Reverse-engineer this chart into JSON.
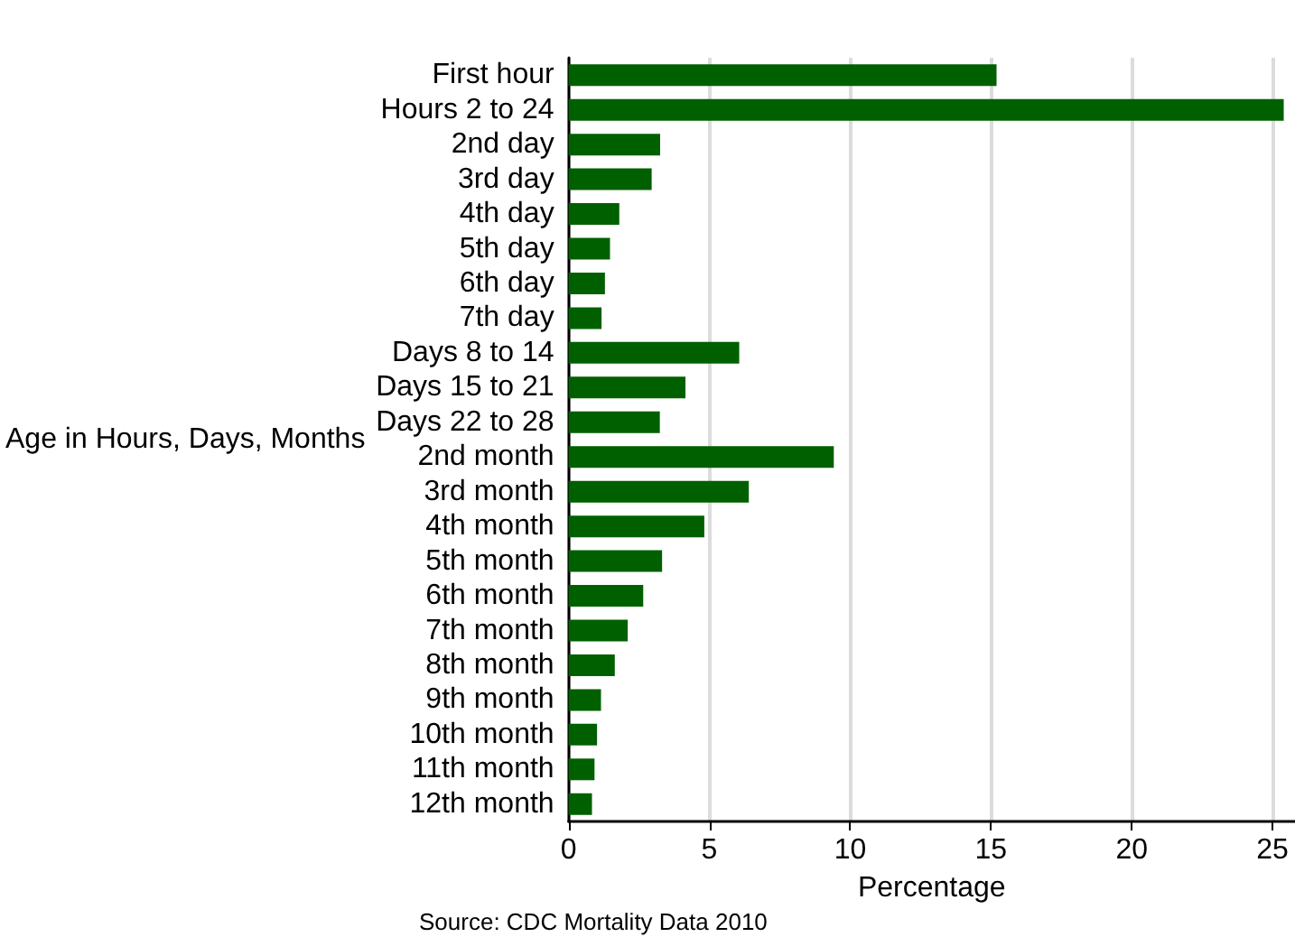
{
  "chart_data": {
    "type": "bar",
    "orientation": "horizontal",
    "categories": [
      "First hour",
      "Hours 2 to 24",
      "2nd day",
      "3rd day",
      "4th day",
      "5th day",
      "6th day",
      "7th day",
      "Days 8 to 14",
      "Days 15 to 21",
      "Days 22 to 28",
      "2nd month",
      "3rd month",
      "4th month",
      "5th month",
      "6th month",
      "7th month",
      "8th month",
      "9th month",
      "10th month",
      "11th month",
      "12th month"
    ],
    "values": [
      15.2,
      25.4,
      3.25,
      2.95,
      1.8,
      1.47,
      1.29,
      1.17,
      6.06,
      4.15,
      3.24,
      9.42,
      6.4,
      4.82,
      3.32,
      2.65,
      2.1,
      1.64,
      1.15,
      1.01,
      0.92,
      0.83
    ],
    "color": "#006000",
    "xlim": [
      0,
      25.8
    ],
    "xticks": [
      0,
      5,
      10,
      15,
      20,
      25
    ],
    "xlabel": "Percentage",
    "ylabel": "Age in Hours, Days, Months",
    "annotations": [
      "Source: CDC Mortality Data 2010"
    ],
    "grid": "x"
  }
}
